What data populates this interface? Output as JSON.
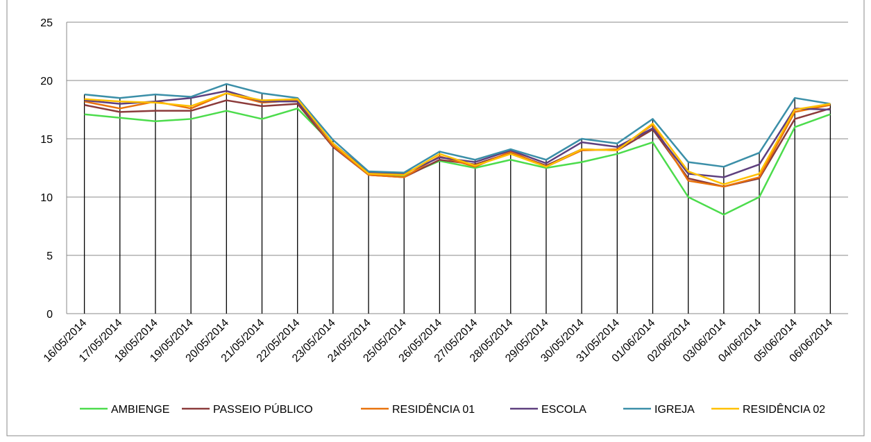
{
  "chart_data": {
    "type": "line",
    "categories": [
      "16/05/2014",
      "17/05/2014",
      "18/05/2014",
      "19/05/2014",
      "20/05/2014",
      "21/05/2014",
      "22/05/2014",
      "23/05/2014",
      "24/05/2014",
      "25/05/2014",
      "26/05/2014",
      "27/05/2014",
      "28/05/2014",
      "29/05/2014",
      "30/05/2014",
      "31/05/2014",
      "01/06/2014",
      "02/06/2014",
      "03/06/2014",
      "04/06/2014",
      "05/06/2014",
      "06/06/2014"
    ],
    "series": [
      {
        "name": "AMBIENGE",
        "color": "#4cdc4c",
        "values": [
          17.1,
          16.8,
          16.5,
          16.7,
          17.4,
          16.7,
          17.6,
          14.5,
          12.0,
          11.8,
          13.1,
          12.5,
          13.2,
          12.5,
          13.0,
          13.7,
          14.7,
          10.0,
          8.5,
          10.0,
          16.0,
          17.1
        ]
      },
      {
        "name": "PASSEIO PÚBLICO",
        "color": "#8b3a3a",
        "values": [
          17.9,
          17.3,
          17.4,
          17.4,
          18.3,
          17.8,
          18.0,
          14.3,
          11.9,
          11.7,
          13.2,
          12.8,
          13.8,
          12.7,
          14.1,
          14.0,
          15.8,
          11.6,
          10.9,
          11.6,
          16.7,
          17.6
        ]
      },
      {
        "name": "RESIDÊNCIA 01",
        "color": "#e8720c",
        "values": [
          18.2,
          17.6,
          18.2,
          17.6,
          18.9,
          18.1,
          18.3,
          14.4,
          11.9,
          11.7,
          13.5,
          12.6,
          13.9,
          12.6,
          14.0,
          14.1,
          16.2,
          11.4,
          10.9,
          11.7,
          17.3,
          17.9
        ]
      },
      {
        "name": "ESCOLA",
        "color": "#5e3f7e",
        "values": [
          18.3,
          18.0,
          18.2,
          18.5,
          19.1,
          18.2,
          18.2,
          14.6,
          12.1,
          12.0,
          13.4,
          13.0,
          14.0,
          12.9,
          14.7,
          14.3,
          15.9,
          12.0,
          11.7,
          12.8,
          17.6,
          17.5
        ]
      },
      {
        "name": "IGREJA",
        "color": "#3b8fa8",
        "values": [
          18.8,
          18.5,
          18.8,
          18.6,
          19.7,
          18.9,
          18.5,
          14.9,
          12.2,
          12.1,
          13.9,
          13.2,
          14.1,
          13.2,
          15.0,
          14.6,
          16.7,
          13.0,
          12.6,
          13.8,
          18.5,
          18.0
        ]
      },
      {
        "name": "RESIDÊNCIA 02",
        "color": "#ffc000",
        "values": [
          18.4,
          18.2,
          18.1,
          17.8,
          18.9,
          18.3,
          18.4,
          14.6,
          12.0,
          11.9,
          13.7,
          12.7,
          13.7,
          12.6,
          14.1,
          14.0,
          16.3,
          12.2,
          11.1,
          12.0,
          17.5,
          18.0
        ]
      }
    ],
    "ylim": [
      0,
      25
    ],
    "yticks": [
      0,
      5,
      10,
      15,
      20,
      25
    ],
    "grid": true,
    "drop_lines": true,
    "legend": "bottom"
  }
}
